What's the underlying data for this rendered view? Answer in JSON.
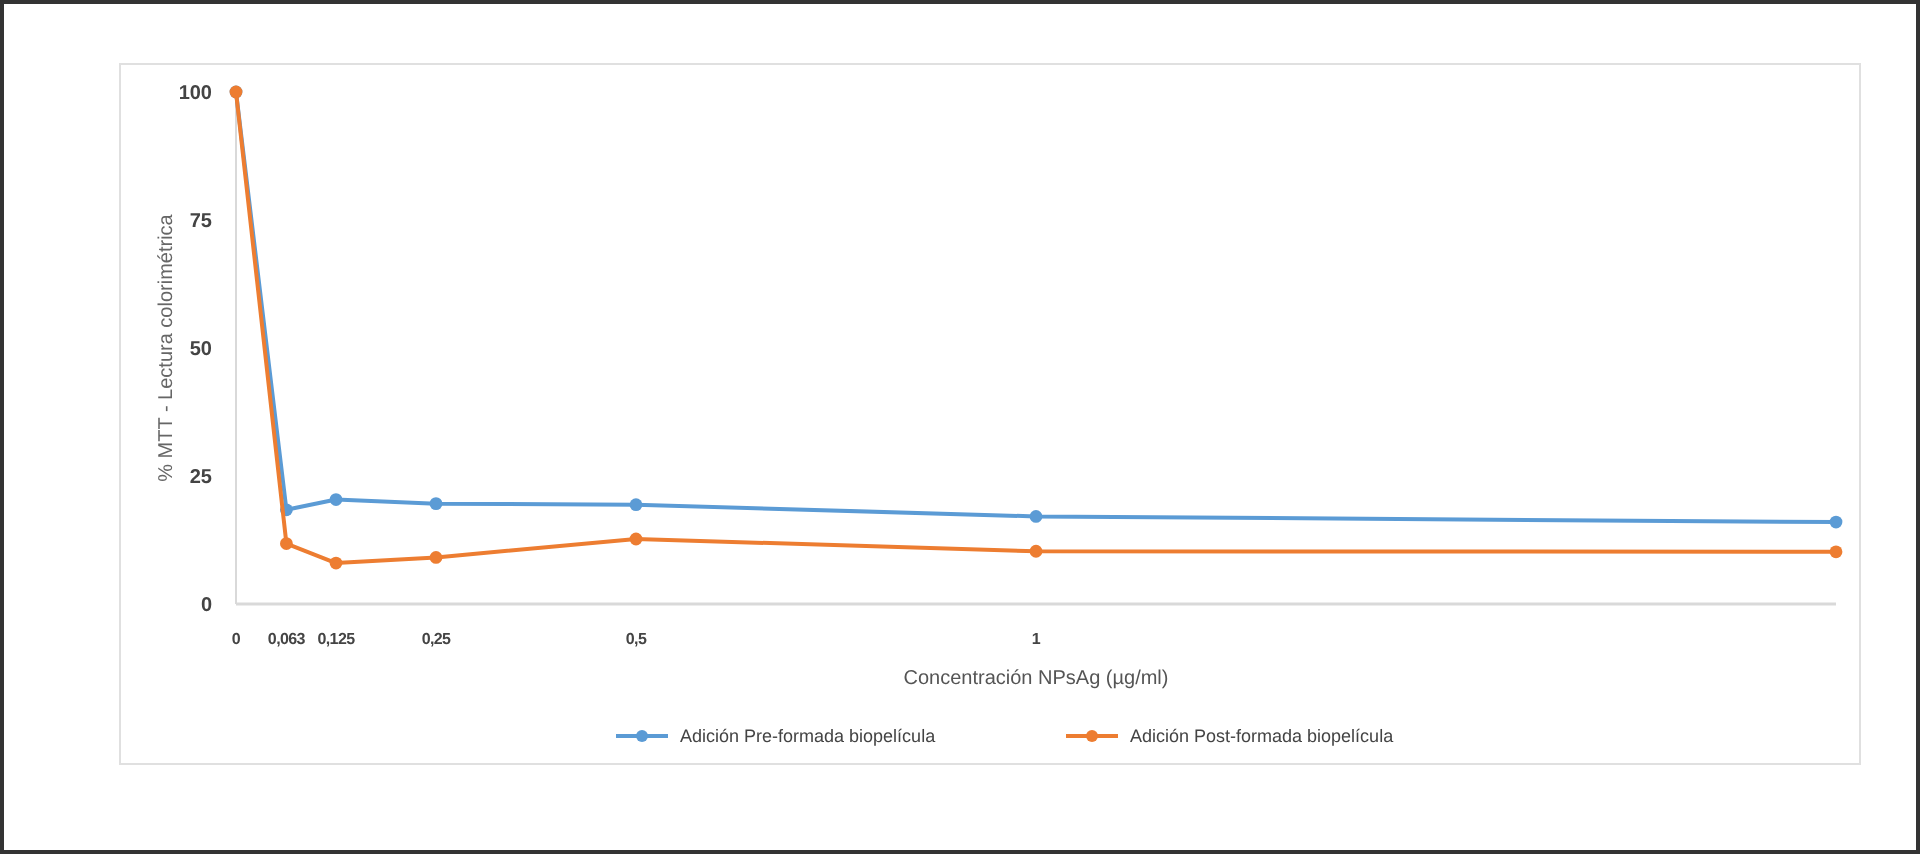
{
  "chart_data": {
    "type": "line",
    "xlabel": "Concentración NPsAg (µg/ml)",
    "ylabel": "% MTT - Lectura colorimétrica",
    "x": [
      0,
      0.063,
      0.125,
      0.25,
      0.5,
      1,
      2
    ],
    "series": [
      {
        "name": "Adición Pre-formada biopelícula",
        "color": "#5b9bd5",
        "values": [
          100,
          18.4,
          20.4,
          19.6,
          19.4,
          17.1,
          16
        ]
      },
      {
        "name": "Adición Post-formada biopelícula",
        "color": "#ed7d31",
        "values": [
          100,
          11.8,
          8,
          9.1,
          12.7,
          10.3,
          10.2
        ]
      }
    ],
    "xlim": [
      0,
      2
    ],
    "xticks": [
      0,
      {
        "value": 0.063,
        "label": "0,063"
      },
      {
        "value": 0.125,
        "label": "0,125"
      },
      {
        "value": 0.25,
        "label": "0,25"
      },
      {
        "value": 0.5,
        "label": "0,5"
      },
      1
    ],
    "ylim": [
      0,
      100
    ],
    "yticks": [
      0,
      25,
      50,
      75,
      100
    ],
    "grid": false,
    "legend": "bottom",
    "marker": "circle",
    "line_style": "solid"
  }
}
